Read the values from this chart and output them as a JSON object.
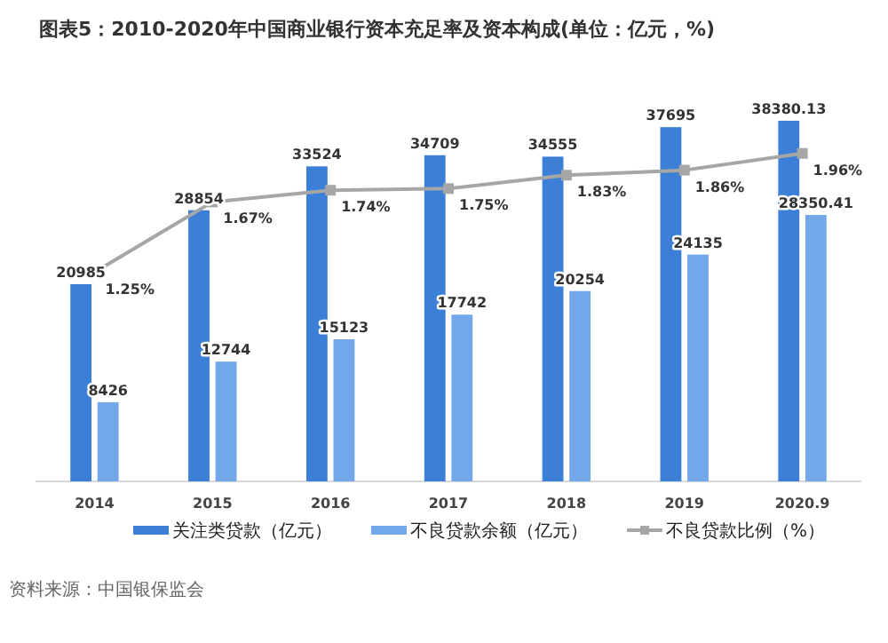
{
  "chart_data": {
    "type": "bar",
    "title": "图表5：2010-2020年中国商业银行资本充足率及资本构成(单位：亿元，%)",
    "categories": [
      "2014",
      "2015",
      "2016",
      "2017",
      "2018",
      "2019",
      "2020.9"
    ],
    "series": [
      {
        "name": "关注类贷款（亿元）",
        "color": "#3b7fd6",
        "values": [
          20985,
          28854,
          33524,
          34709,
          34555,
          37695,
          38380.13
        ],
        "value_labels": [
          "20985",
          "28854",
          "33524",
          "34709",
          "34555",
          "37695",
          "38380.13"
        ]
      },
      {
        "name": "不良贷款余额（亿元）",
        "color": "#72a8ea",
        "values": [
          8426,
          12744,
          15123,
          17742,
          20254,
          24135,
          28350.41
        ],
        "value_labels": [
          "8426",
          "12744",
          "15123",
          "17742",
          "20254",
          "24135",
          "28350.41"
        ]
      },
      {
        "name": "不良贷款比例（%）",
        "type": "line",
        "axis": "y2",
        "color": "#a6a6a6",
        "marker": "square",
        "values": [
          1.25,
          1.67,
          1.74,
          1.75,
          1.83,
          1.86,
          1.96
        ],
        "value_labels": [
          "1.25%",
          "1.67%",
          "1.74%",
          "1.75%",
          "1.83%",
          "1.86%",
          "1.96%"
        ]
      }
    ],
    "tick_labels": "x",
    "legend": "bottom",
    "annotations": [
      "资料来源：中国银保监会"
    ]
  }
}
